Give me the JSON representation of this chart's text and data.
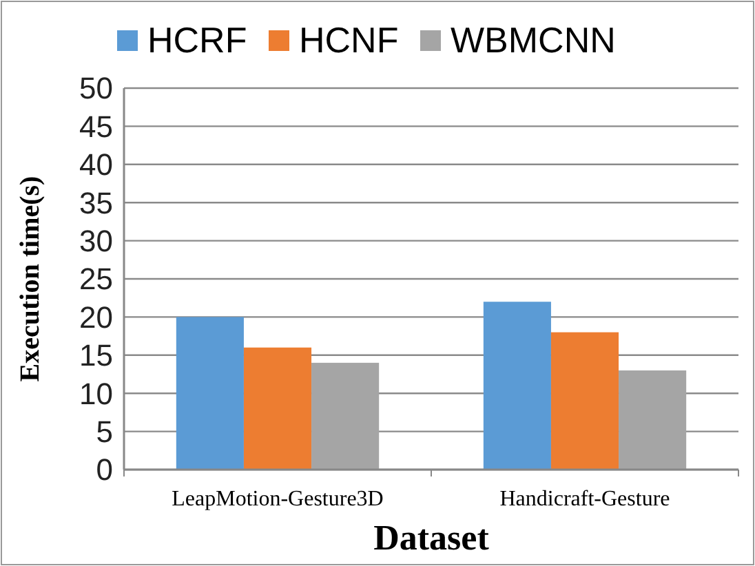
{
  "chart_data": {
    "type": "bar",
    "xlabel": "Dataset",
    "ylabel": "Execution time(s)",
    "categories": [
      "LeapMotion-Gesture3D",
      "Handicraft-Gesture"
    ],
    "series": [
      {
        "name": "HCRF",
        "color": "#5b9bd5",
        "values": [
          20,
          22
        ]
      },
      {
        "name": "HCNF",
        "color": "#ed7d31",
        "values": [
          16,
          18
        ]
      },
      {
        "name": "WBMCNN",
        "color": "#a5a5a5",
        "values": [
          14,
          13
        ]
      }
    ],
    "ylim": [
      0,
      50
    ],
    "yticks": [
      0,
      5,
      10,
      15,
      20,
      25,
      30,
      35,
      40,
      45,
      50
    ],
    "grid": "y",
    "legend": "top"
  }
}
